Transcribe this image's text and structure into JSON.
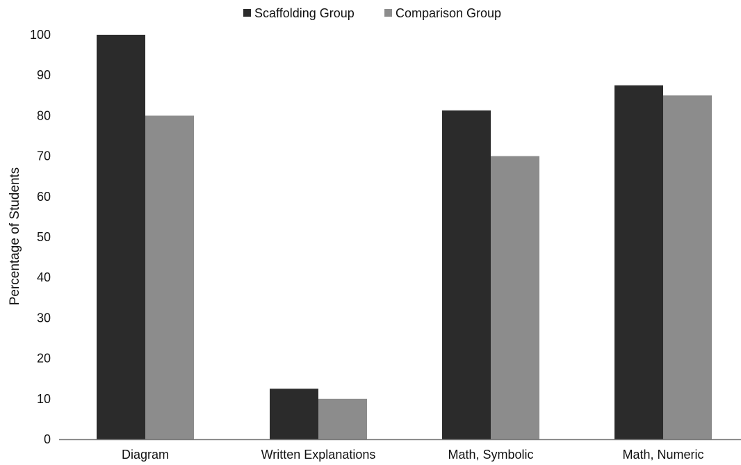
{
  "chart_data": {
    "type": "bar",
    "title": "",
    "xlabel": "",
    "ylabel": "Percentage of Students",
    "ylim": [
      0,
      100
    ],
    "yticks": [
      0,
      10,
      20,
      30,
      40,
      50,
      60,
      70,
      80,
      90,
      100
    ],
    "grid": false,
    "legend_position": "top-center",
    "categories": [
      "Diagram",
      "Written Explanations",
      "Math, Symbolic",
      "Math, Numeric"
    ],
    "series": [
      {
        "name": "Scaffolding Group",
        "color": "#2b2b2b",
        "values": [
          100,
          12.5,
          81.3,
          87.5
        ]
      },
      {
        "name": "Comparison Group",
        "color": "#8c8c8c",
        "values": [
          80,
          10,
          70,
          85
        ]
      }
    ]
  }
}
